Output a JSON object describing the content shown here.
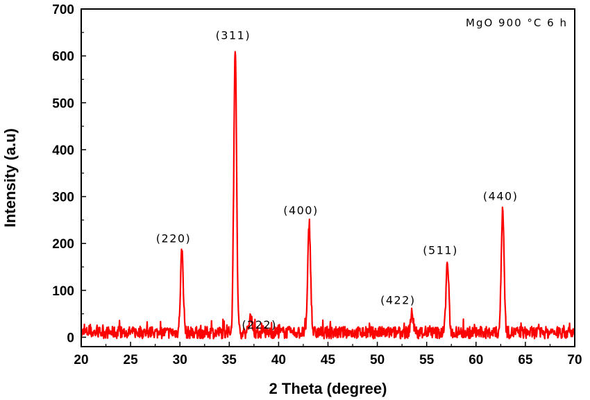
{
  "chart_data": {
    "type": "line",
    "title": "",
    "xlabel": "2 Theta (degree)",
    "ylabel": "Intensity (a.u)",
    "xlim": [
      20,
      70
    ],
    "ylim": [
      -20,
      700
    ],
    "x_ticks": [
      20,
      25,
      30,
      35,
      40,
      45,
      50,
      55,
      60,
      65,
      70
    ],
    "y_ticks": [
      0,
      100,
      200,
      300,
      400,
      500,
      600,
      700
    ],
    "grid": false,
    "legend_text": "MgO  900 °C 6 h",
    "legend_position": "top-right",
    "series_color": "#ff0000",
    "peaks": [
      {
        "label": "(220)",
        "x": 30.2,
        "y": 185
      },
      {
        "label": "(311)",
        "x": 35.6,
        "y": 618
      },
      {
        "label": "(222)",
        "x": 37.2,
        "y": 45
      },
      {
        "label": "(400)",
        "x": 43.1,
        "y": 245
      },
      {
        "label": "(422)",
        "x": 53.5,
        "y": 50
      },
      {
        "label": "(511)",
        "x": 57.1,
        "y": 160
      },
      {
        "label": "(440)",
        "x": 62.7,
        "y": 275
      }
    ],
    "baseline": 10
  }
}
